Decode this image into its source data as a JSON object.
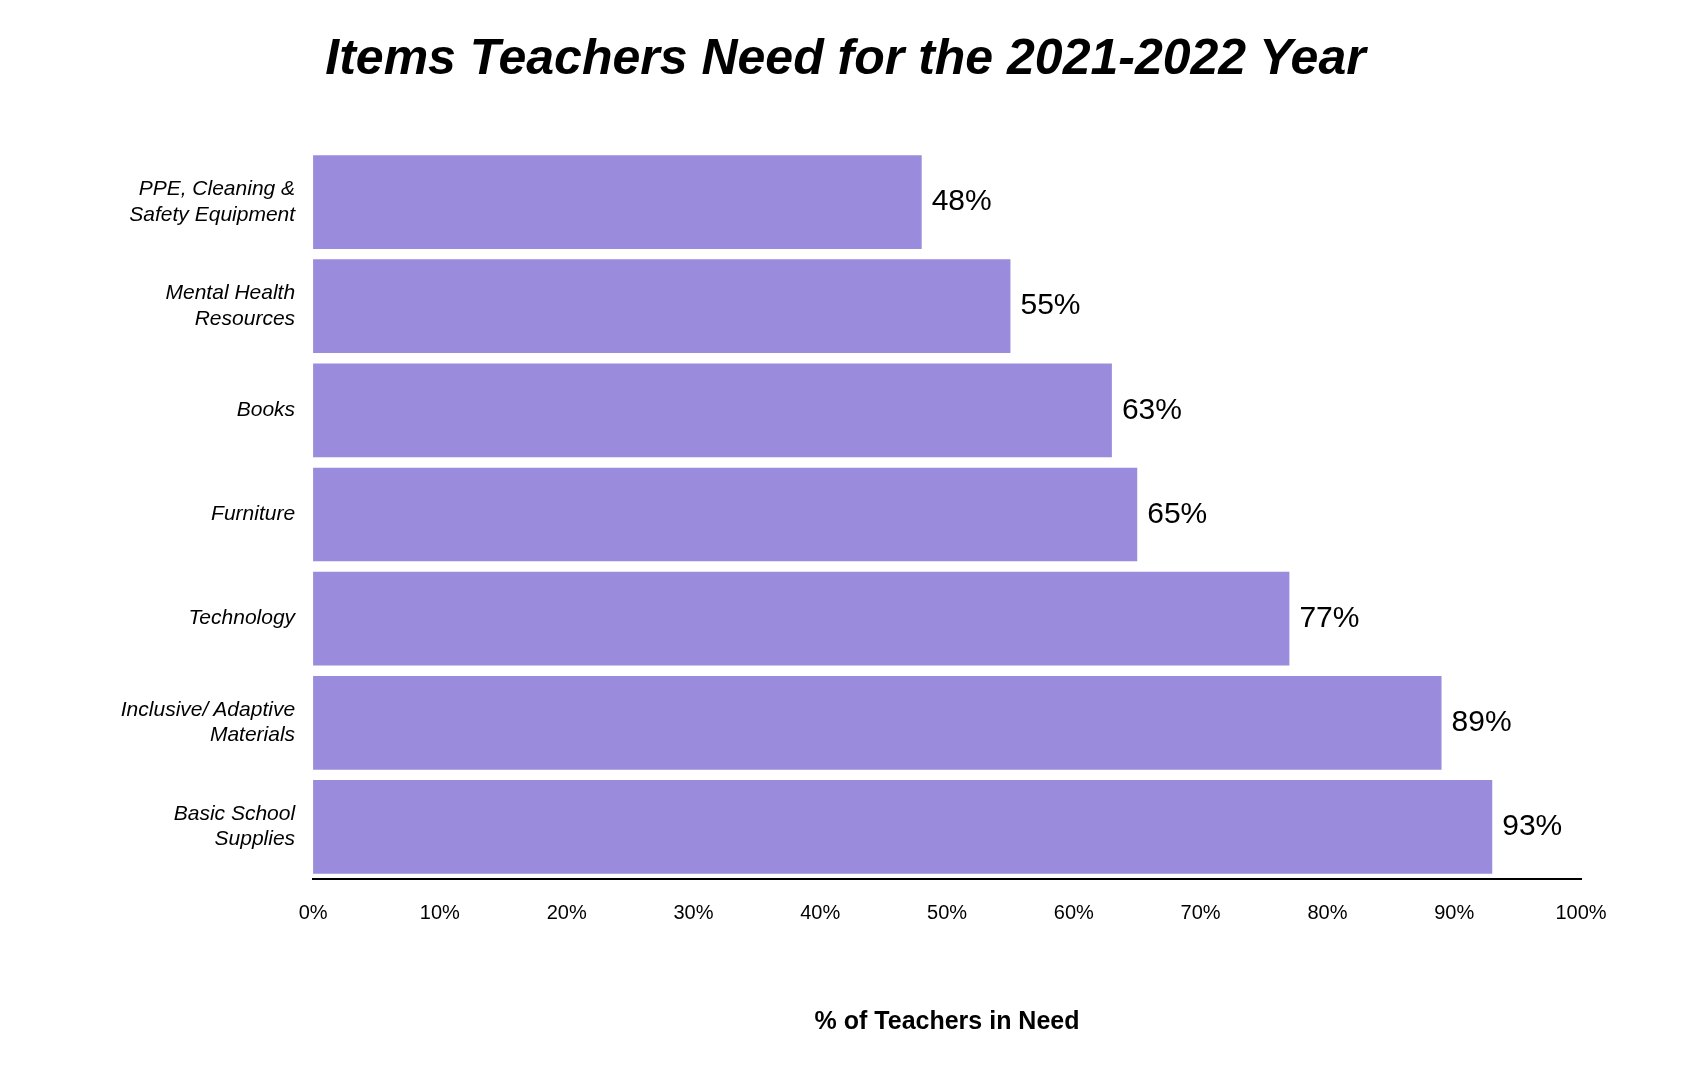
{
  "chart_data": {
    "type": "bar",
    "orientation": "horizontal",
    "title": "Items Teachers Need for the 2021-2022 Year",
    "xlabel": "% of Teachers in Need",
    "categories": [
      "PPE, Cleaning & Safety Equipment",
      "Mental Health Resources",
      "Books",
      "Furniture",
      "Technology",
      "Inclusive/ Adaptive Materials",
      "Basic School Supplies"
    ],
    "values": [
      48,
      55,
      63,
      65,
      77,
      89,
      93
    ],
    "value_labels": [
      "48%",
      "55%",
      "63%",
      "65%",
      "77%",
      "89%",
      "93%"
    ],
    "color": "#9a8bdc",
    "xlim": [
      0,
      100
    ],
    "xticks": [
      {
        "value": 0,
        "label": "0%"
      },
      {
        "value": 10,
        "label": "10%"
      },
      {
        "value": 20,
        "label": "20%"
      },
      {
        "value": 30,
        "label": "30%"
      },
      {
        "value": 40,
        "label": "40%"
      },
      {
        "value": 50,
        "label": "50%"
      },
      {
        "value": 60,
        "label": "60%"
      },
      {
        "value": 70,
        "label": "70%"
      },
      {
        "value": 80,
        "label": "80%"
      },
      {
        "value": 90,
        "label": "90%"
      },
      {
        "value": 100,
        "label": "100%"
      }
    ],
    "grid": false,
    "legend": false
  }
}
